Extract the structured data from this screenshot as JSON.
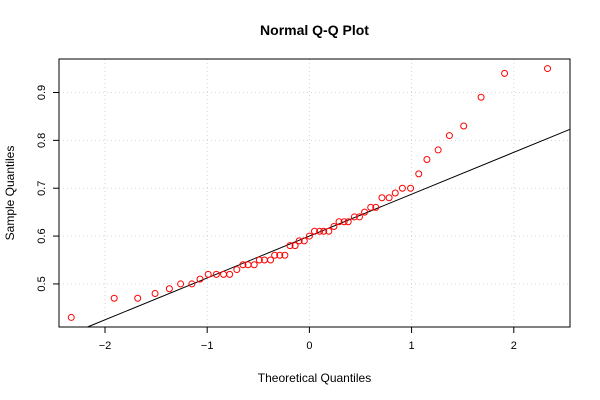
{
  "chart_data": {
    "type": "scatter",
    "title": "Normal Q-Q Plot",
    "xlabel": "Theoretical Quantiles",
    "ylabel": "Sample Quantiles",
    "xlim": [
      -2.45,
      2.55
    ],
    "ylim": [
      0.41,
      0.97
    ],
    "xticks": [
      -2,
      -1,
      0,
      1,
      2
    ],
    "xtick_labels": [
      "−2",
      "−1",
      "0",
      "1",
      "2"
    ],
    "yticks": [
      0.5,
      0.6,
      0.7,
      0.8,
      0.9
    ],
    "ytick_labels": [
      "0.5",
      "0.6",
      "0.7",
      "0.8",
      "0.9"
    ],
    "grid": true,
    "point_color": "#ff0000",
    "line_color": "#000000",
    "grid_color": "#d3d3d3",
    "reference_line": {
      "intercept": 0.6,
      "slope": 0.0875
    },
    "series": [
      {
        "x": [
          -2.33,
          -1.91,
          -1.68,
          -1.51,
          -1.37,
          -1.26,
          -1.15,
          -1.07,
          -0.99,
          -0.91,
          -0.84,
          -0.78,
          -0.71,
          -0.65,
          -0.6,
          -0.54,
          -0.49,
          -0.44,
          -0.38,
          -0.34,
          -0.29,
          -0.24,
          -0.19,
          -0.14,
          -0.1,
          -0.05,
          0.0,
          0.05,
          0.1,
          0.14,
          0.19,
          0.24,
          0.29,
          0.34,
          0.38,
          0.44,
          0.49,
          0.54,
          0.6,
          0.65,
          0.71,
          0.78,
          0.84,
          0.91,
          0.99,
          1.07,
          1.15,
          1.26,
          1.37,
          1.51,
          1.68,
          1.91,
          2.33
        ],
        "y": [
          0.43,
          0.47,
          0.47,
          0.48,
          0.49,
          0.5,
          0.5,
          0.51,
          0.52,
          0.52,
          0.52,
          0.52,
          0.53,
          0.54,
          0.54,
          0.54,
          0.55,
          0.55,
          0.55,
          0.56,
          0.56,
          0.56,
          0.58,
          0.58,
          0.59,
          0.59,
          0.6,
          0.61,
          0.61,
          0.61,
          0.61,
          0.62,
          0.63,
          0.63,
          0.63,
          0.64,
          0.64,
          0.65,
          0.66,
          0.66,
          0.68,
          0.68,
          0.69,
          0.7,
          0.7,
          0.73,
          0.76,
          0.78,
          0.81,
          0.83,
          0.89,
          0.94,
          0.95
        ]
      }
    ]
  }
}
